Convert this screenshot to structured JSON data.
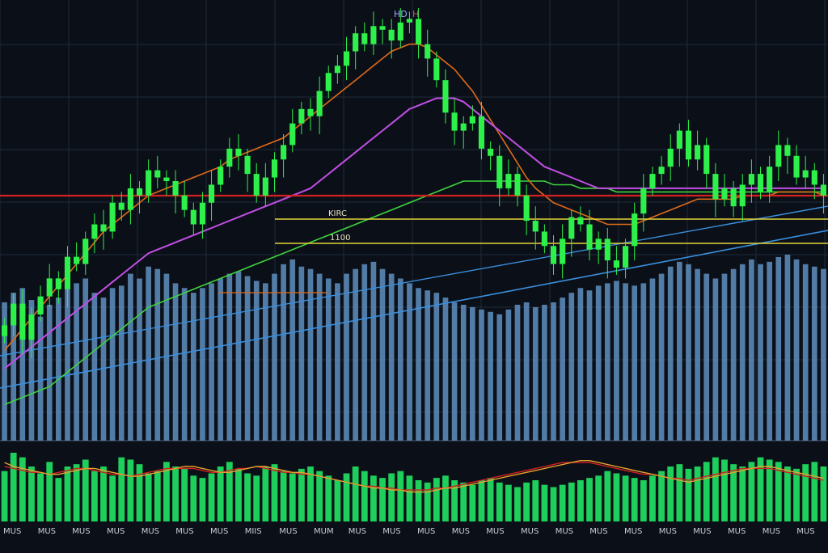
{
  "header": {
    "ticker_left": "HD",
    "ticker_right": "H"
  },
  "colors": {
    "background": "#0b1018",
    "grid": "#1e2a3a",
    "candle": "#2ef04a",
    "volume": "#5f8fbf",
    "lower_volume": "#1fcf5c",
    "ma_orange": "#e06a1a",
    "ma_magenta": "#c24ee6",
    "ma_green": "#3fd23f",
    "trend_blue": "#3a8fdd",
    "resistance_red": "#d42020",
    "level_yellow": "#e2d23a"
  },
  "levels": [
    {
      "name": "resistance",
      "label": "",
      "value": 300
    },
    {
      "name": "level-1",
      "label": "KIRC",
      "value": 290
    },
    {
      "name": "level-2",
      "label": "1100",
      "value": 280
    }
  ],
  "chart_data": {
    "type": "candlestick",
    "title": "",
    "xlabel": "",
    "ylabel": "",
    "x_tick_labels": [
      "MUS",
      "MUS",
      "MUS",
      "MUS",
      "MUS",
      "MUS",
      "MUS",
      "MIIS",
      "MUS",
      "MUM",
      "MUS",
      "MUS",
      "MUS",
      "MUS",
      "MUS",
      "MUS",
      "MUS",
      "MUS",
      "MUS",
      "MUS",
      "MUS",
      "MUS",
      "MUS",
      "MUS"
    ],
    "ylim": [
      230,
      350
    ],
    "candles_close": [
      262,
      268,
      258,
      265,
      270,
      275,
      272,
      281,
      279,
      286,
      290,
      288,
      296,
      294,
      300,
      298,
      305,
      303,
      302,
      298,
      294,
      290,
      296,
      301,
      306,
      311,
      309,
      304,
      298,
      303,
      308,
      312,
      318,
      322,
      320,
      327,
      332,
      334,
      338,
      343,
      340,
      345,
      344,
      341,
      346,
      347,
      340,
      336,
      330,
      321,
      316,
      318,
      320,
      311,
      309,
      300,
      304,
      298,
      291,
      288,
      284,
      279,
      286,
      292,
      290,
      283,
      286,
      280,
      278,
      284,
      293,
      300,
      304,
      306,
      311,
      316,
      308,
      312,
      304,
      297,
      300,
      295,
      301,
      304,
      299,
      306,
      312,
      309,
      303,
      305,
      301,
      298
    ],
    "volume": [
      58,
      62,
      64,
      59,
      52,
      57,
      60,
      64,
      66,
      68,
      62,
      60,
      64,
      65,
      70,
      68,
      73,
      72,
      70,
      66,
      64,
      62,
      64,
      66,
      68,
      70,
      71,
      69,
      67,
      66,
      70,
      74,
      76,
      73,
      72,
      70,
      68,
      66,
      70,
      72,
      74,
      75,
      72,
      70,
      68,
      66,
      64,
      63,
      62,
      60,
      58,
      57,
      56,
      55,
      54,
      53,
      55,
      57,
      58,
      56,
      57,
      58,
      60,
      62,
      64,
      63,
      65,
      66,
      67,
      66,
      65,
      66,
      68,
      70,
      73,
      75,
      74,
      72,
      70,
      68,
      70,
      72,
      74,
      76,
      74,
      75,
      77,
      78,
      76,
      74,
      73,
      72
    ],
    "ma_orange": [
      255,
      258,
      261,
      264,
      267,
      270,
      273,
      276,
      279,
      282,
      285,
      288,
      290,
      292,
      294,
      296,
      298,
      299,
      300,
      301,
      302,
      303,
      304,
      305,
      306,
      308,
      309,
      310,
      311,
      312,
      313,
      314,
      316,
      318,
      320,
      322,
      324,
      326,
      328,
      330,
      332,
      334,
      336,
      338,
      339,
      340,
      340,
      339,
      337,
      335,
      333,
      330,
      327,
      323,
      319,
      315,
      311,
      307,
      303,
      300,
      298,
      296,
      295,
      294,
      293,
      292,
      291,
      290,
      290,
      290,
      290,
      291,
      292,
      293,
      294,
      295,
      296,
      297,
      297,
      297,
      297,
      297,
      298,
      298,
      298,
      298,
      299,
      299,
      299,
      299,
      299,
      298
    ],
    "ma_magenta": [
      250,
      252,
      254,
      256,
      258,
      260,
      262,
      264,
      266,
      268,
      270,
      272,
      274,
      276,
      278,
      280,
      282,
      283,
      284,
      285,
      286,
      287,
      288,
      289,
      290,
      291,
      292,
      293,
      294,
      295,
      296,
      297,
      298,
      299,
      300,
      302,
      304,
      306,
      308,
      310,
      312,
      314,
      316,
      318,
      320,
      322,
      323,
      324,
      325,
      325,
      325,
      324,
      322,
      320,
      318,
      316,
      314,
      312,
      310,
      308,
      306,
      305,
      304,
      303,
      302,
      301,
      300,
      300,
      300,
      300,
      300,
      300,
      300,
      300,
      300,
      300,
      300,
      300,
      300,
      300,
      300,
      300,
      300,
      300,
      300,
      300,
      300,
      300,
      300,
      300,
      300,
      300
    ],
    "ma_green": [
      240,
      241,
      242,
      243,
      244,
      245,
      247,
      249,
      251,
      253,
      255,
      257,
      259,
      261,
      263,
      265,
      267,
      268,
      269,
      270,
      271,
      272,
      273,
      274,
      275,
      276,
      277,
      278,
      279,
      280,
      281,
      282,
      283,
      284,
      285,
      286,
      287,
      288,
      289,
      290,
      291,
      292,
      293,
      294,
      295,
      296,
      297,
      298,
      299,
      300,
      301,
      302,
      302,
      302,
      302,
      302,
      302,
      302,
      302,
      302,
      302,
      301,
      301,
      301,
      300,
      300,
      300,
      300,
      299,
      299,
      299,
      299,
      299,
      299,
      299,
      299,
      299,
      299,
      299,
      299,
      299,
      299,
      299,
      299,
      299,
      299,
      299,
      299,
      299,
      299,
      299,
      299
    ],
    "lower_volume": [
      22,
      30,
      28,
      24,
      21,
      26,
      19,
      24,
      25,
      27,
      22,
      24,
      20,
      28,
      27,
      25,
      21,
      22,
      26,
      24,
      23,
      20,
      19,
      21,
      24,
      26,
      23,
      21,
      20,
      24,
      25,
      22,
      21,
      23,
      24,
      22,
      20,
      18,
      21,
      24,
      22,
      20,
      19,
      21,
      22,
      20,
      18,
      17,
      19,
      20,
      18,
      17,
      16,
      18,
      19,
      17,
      16,
      15,
      17,
      18,
      16,
      15,
      16,
      17,
      18,
      19,
      20,
      22,
      21,
      20,
      19,
      18,
      20,
      22,
      24,
      25,
      23,
      24,
      26,
      28,
      27,
      25,
      24,
      26,
      28,
      27,
      26,
      24,
      23,
      25,
      26,
      24
    ],
    "lower_lines": {
      "orange": [
        30,
        28,
        27,
        26,
        25,
        24,
        24,
        25,
        26,
        27,
        27,
        26,
        25,
        24,
        23,
        23,
        24,
        25,
        26,
        27,
        28,
        28,
        27,
        26,
        25,
        25,
        26,
        27,
        28,
        28,
        27,
        26,
        25,
        25,
        24,
        23,
        22,
        21,
        20,
        19,
        18,
        17,
        17,
        16,
        16,
        15,
        15,
        15,
        16,
        17,
        17,
        18,
        19,
        20,
        21,
        22,
        23,
        24,
        25,
        26,
        27,
        28,
        29,
        30,
        31,
        31,
        30,
        29,
        28,
        27,
        26,
        25,
        24,
        23,
        22,
        21,
        20,
        21,
        22,
        23,
        24,
        25,
        26,
        27,
        28,
        28,
        27,
        26,
        25,
        24,
        23,
        22
      ],
      "red": [
        28,
        27,
        26,
        25,
        25,
        24,
        25,
        26,
        27,
        27,
        26,
        25,
        24,
        24,
        23,
        24,
        25,
        26,
        27,
        27,
        27,
        27,
        26,
        25,
        25,
        26,
        27,
        27,
        28,
        27,
        26,
        25,
        25,
        24,
        24,
        23,
        22,
        21,
        20,
        19,
        18,
        18,
        17,
        17,
        16,
        16,
        16,
        16,
        17,
        17,
        18,
        19,
        20,
        21,
        22,
        23,
        24,
        25,
        26,
        27,
        28,
        29,
        30,
        30,
        30,
        30,
        29,
        28,
        27,
        26,
        25,
        24,
        24,
        23,
        22,
        22,
        21,
        22,
        23,
        24,
        25,
        26,
        27,
        27,
        27,
        27,
        26,
        25,
        24,
        23,
        22,
        21
      ]
    }
  }
}
